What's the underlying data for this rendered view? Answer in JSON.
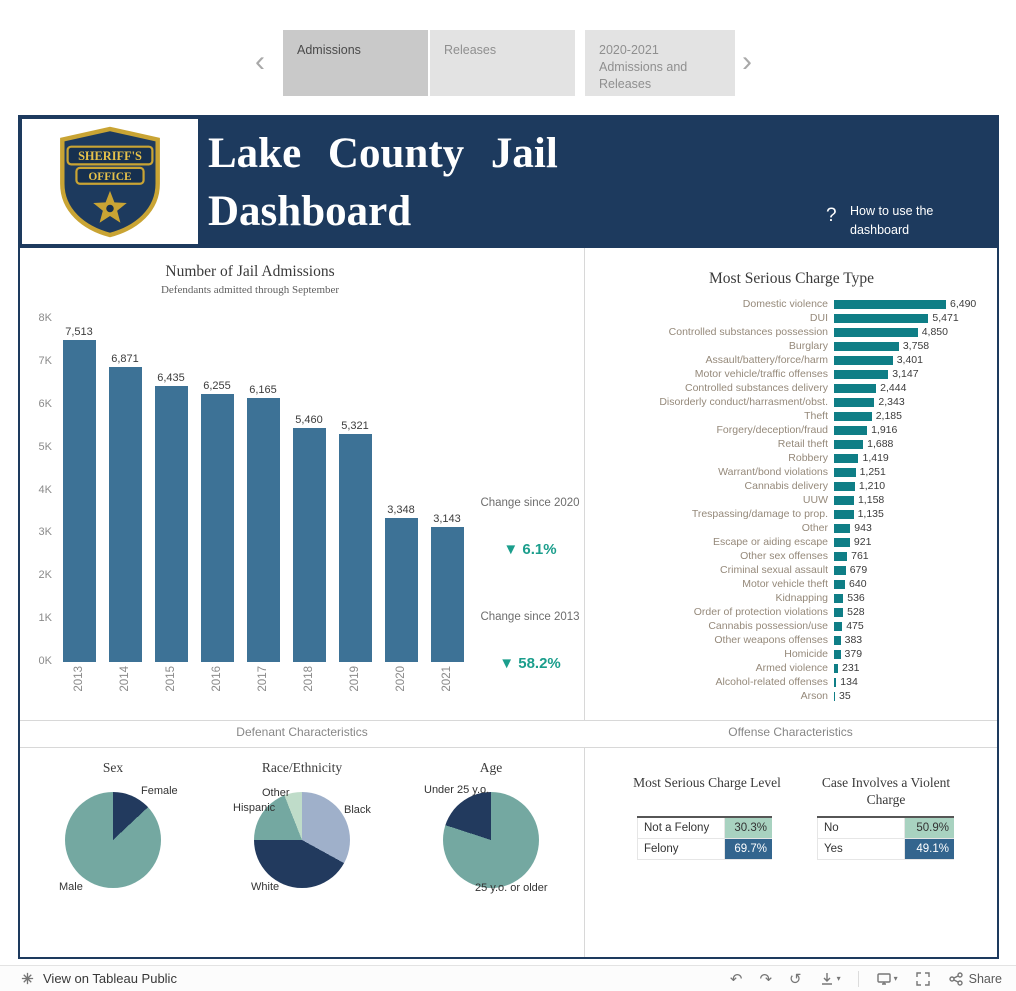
{
  "tab_bar": {
    "prev_icon": "‹",
    "next_icon": "›",
    "tabs": [
      {
        "label": "Admissions",
        "selected": true
      },
      {
        "label": "Releases",
        "selected": false
      },
      {
        "label": "2020-2021 Admissions and Releases",
        "selected": false
      }
    ]
  },
  "header": {
    "title": "Lake County Jail Dashboard",
    "logo": {
      "line1": "SHERIFF'S",
      "line2": "OFFICE"
    },
    "help_icon": "?",
    "help_text": "How to use the dashboard"
  },
  "section_labels": {
    "left": "Defenant Characteristics",
    "right": "Offense Characteristics"
  },
  "colors": {
    "header_navy": "#1d3a5e",
    "admissions_bar": "#3d7296",
    "charge_bar": "#0f7e86",
    "change_teal": "#1b9e8c",
    "table_light": "#a8d2c0",
    "table_dark": "#33658e"
  },
  "chart_data": [
    {
      "id": "jail-admissions",
      "type": "bar",
      "title": "Number of Jail Admissions",
      "subtitle": "Defendants admitted through September",
      "categories": [
        "2013",
        "2014",
        "2015",
        "2016",
        "2017",
        "2018",
        "2019",
        "2020",
        "2021"
      ],
      "values": [
        7513,
        6871,
        6435,
        6255,
        6165,
        5460,
        5321,
        3348,
        3143
      ],
      "labels": [
        "7,513",
        "6,871",
        "6,435",
        "6,255",
        "6,165",
        "5,460",
        "5,321",
        "3,348",
        "3,143"
      ],
      "ylim": [
        0,
        8000
      ],
      "yticks": [
        "0K",
        "1K",
        "2K",
        "3K",
        "4K",
        "5K",
        "6K",
        "7K",
        "8K"
      ],
      "grid": false,
      "bar_color": "#3d7296",
      "annotations": [
        {
          "label": "Change since 2020",
          "value": "▼ 6.1%"
        },
        {
          "label": "Change since 2013",
          "value": "▼ 58.2%"
        }
      ],
      "annotation_color": "#1b9e8c"
    },
    {
      "id": "most-serious-charge-type",
      "type": "bar-horizontal",
      "title": "Most Serious Charge Type",
      "categories": [
        "Domestic violence",
        "DUI",
        "Controlled substances possession",
        "Burglary",
        "Assault/battery/force/harm",
        "Motor vehicle/traffic offenses",
        "Controlled substances delivery",
        "Disorderly conduct/harrasment/obst.",
        "Theft",
        "Forgery/deception/fraud",
        "Retail theft",
        "Robbery",
        "Warrant/bond violations",
        "Cannabis delivery",
        "UUW",
        "Trespassing/damage to prop.",
        "Other",
        "Escape or aiding escape",
        "Other sex offenses",
        "Criminal sexual assault",
        "Motor vehicle theft",
        "Kidnapping",
        "Order of protection violations",
        "Cannabis possession/use",
        "Other weapons offenses",
        "Homicide",
        "Armed violence",
        "Alcohol-related offenses",
        "Arson"
      ],
      "values": [
        6490,
        5471,
        4850,
        3758,
        3401,
        3147,
        2444,
        2343,
        2185,
        1916,
        1688,
        1419,
        1251,
        1210,
        1158,
        1135,
        943,
        921,
        761,
        679,
        640,
        536,
        528,
        475,
        383,
        379,
        231,
        134,
        35
      ],
      "labels": [
        "6,490",
        "5,471",
        "4,850",
        "3,758",
        "3,401",
        "3,147",
        "2,444",
        "2,343",
        "2,185",
        "1,916",
        "1,688",
        "1,419",
        "1,251",
        "1,210",
        "1,158",
        "1,135",
        "943",
        "921",
        "761",
        "679",
        "640",
        "536",
        "528",
        "475",
        "383",
        "379",
        "231",
        "134",
        "35"
      ],
      "xlim": [
        0,
        6600
      ],
      "grid": false,
      "bar_color": "#0f7e86"
    },
    {
      "id": "sex",
      "type": "pie",
      "title": "Sex",
      "slices": [
        {
          "label": "Female",
          "value": 13,
          "color": "#223a5e"
        },
        {
          "label": "Male",
          "value": 87,
          "color": "#74a8a1"
        }
      ]
    },
    {
      "id": "race-ethnicity",
      "type": "pie",
      "title": "Race/Ethnicity",
      "slices": [
        {
          "label": "Black",
          "value": 33,
          "color": "#9fb0ca"
        },
        {
          "label": "White",
          "value": 42,
          "color": "#223a5e"
        },
        {
          "label": "Hispanic",
          "value": 19,
          "color": "#74a8a1"
        },
        {
          "label": "Other",
          "value": 6,
          "color": "#bfdcc9"
        }
      ]
    },
    {
      "id": "age",
      "type": "pie",
      "title": "Age",
      "slices": [
        {
          "label": "25 y.o. or older",
          "value": 80,
          "color": "#74a8a1"
        },
        {
          "label": "Under 25 y.o.",
          "value": 20,
          "color": "#223a5e"
        }
      ]
    },
    {
      "id": "most-serious-charge-level",
      "type": "table",
      "title": "Most Serious Charge Level",
      "rows": [
        {
          "label": "Not a Felony",
          "value": "30.3%",
          "color": "#a8d2c0",
          "text_color": "#333333"
        },
        {
          "label": "Felony",
          "value": "69.7%",
          "color": "#33658e",
          "text_color": "#ffffff"
        }
      ]
    },
    {
      "id": "case-involves-violent-charge",
      "type": "table",
      "title": "Case Involves a Violent Charge",
      "rows": [
        {
          "label": "No",
          "value": "50.9%",
          "color": "#a8d2c0",
          "text_color": "#333333"
        },
        {
          "label": "Yes",
          "value": "49.1%",
          "color": "#33658e",
          "text_color": "#ffffff"
        }
      ]
    }
  ],
  "footer": {
    "view_label": "View on Tableau Public",
    "share_label": "Share",
    "undo_icon": "↶",
    "redo_icon": "↷",
    "reset_icon": "↺",
    "caret_icon": "▾"
  }
}
